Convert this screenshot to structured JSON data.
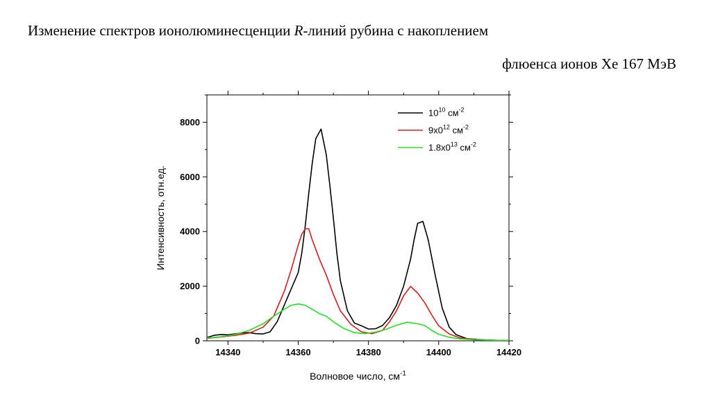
{
  "header": {
    "line1_prefix": "Изменение спектров ионолюминесценции ",
    "line1_italic": "R",
    "line1_suffix": "-линий рубина с накоплением",
    "line2": "флюенса ионов Xe 167 МэВ"
  },
  "chart_data": {
    "type": "line",
    "xlabel": {
      "text": "Волновое число, см",
      "sup": "-1"
    },
    "ylabel": "Интенсивность, отн.ед.",
    "xlim": [
      14334,
      14420
    ],
    "ylim": [
      0,
      9000
    ],
    "x_ticks": [
      14340,
      14360,
      14380,
      14400,
      14420
    ],
    "y_ticks": [
      0,
      2000,
      4000,
      6000,
      8000
    ],
    "grid": false,
    "legend_position": "top-right",
    "series": [
      {
        "name": "10^10 см^-2",
        "legend": {
          "base": "10",
          "sup1": "10",
          "mid": " см",
          "sup2": "-2"
        },
        "color": "#000000",
        "points": [
          [
            14334,
            120
          ],
          [
            14336,
            200
          ],
          [
            14338,
            230
          ],
          [
            14340,
            220
          ],
          [
            14342,
            250
          ],
          [
            14344,
            290
          ],
          [
            14346,
            300
          ],
          [
            14348,
            260
          ],
          [
            14350,
            250
          ],
          [
            14352,
            330
          ],
          [
            14354,
            700
          ],
          [
            14356,
            1300
          ],
          [
            14358,
            1900
          ],
          [
            14360,
            2500
          ],
          [
            14361,
            3200
          ],
          [
            14362,
            4200
          ],
          [
            14363,
            5400
          ],
          [
            14364,
            6500
          ],
          [
            14365,
            7400
          ],
          [
            14366.5,
            7750
          ],
          [
            14368,
            6800
          ],
          [
            14369,
            5700
          ],
          [
            14370,
            4500
          ],
          [
            14371,
            3200
          ],
          [
            14372,
            2200
          ],
          [
            14374,
            1100
          ],
          [
            14376,
            650
          ],
          [
            14378,
            550
          ],
          [
            14380,
            430
          ],
          [
            14382,
            440
          ],
          [
            14384,
            560
          ],
          [
            14386,
            850
          ],
          [
            14388,
            1300
          ],
          [
            14390,
            2000
          ],
          [
            14392,
            3000
          ],
          [
            14393,
            3700
          ],
          [
            14394,
            4300
          ],
          [
            14395.5,
            4370
          ],
          [
            14397,
            3700
          ],
          [
            14399,
            2400
          ],
          [
            14401,
            1200
          ],
          [
            14403,
            500
          ],
          [
            14405,
            220
          ],
          [
            14408,
            80
          ],
          [
            14412,
            40
          ],
          [
            14416,
            20
          ],
          [
            14420,
            10
          ]
        ]
      },
      {
        "name": "9x0^12 см^-2",
        "legend": {
          "base": "9x0",
          "sup1": "12",
          "mid": " см",
          "sup2": "-2"
        },
        "color": "#e01a1a",
        "points": [
          [
            14334,
            90
          ],
          [
            14338,
            140
          ],
          [
            14342,
            200
          ],
          [
            14346,
            280
          ],
          [
            14350,
            500
          ],
          [
            14353,
            900
          ],
          [
            14356,
            1800
          ],
          [
            14358,
            2600
          ],
          [
            14360,
            3500
          ],
          [
            14361,
            3900
          ],
          [
            14362,
            4100
          ],
          [
            14363,
            4100
          ],
          [
            14364,
            3700
          ],
          [
            14366,
            3000
          ],
          [
            14368,
            2400
          ],
          [
            14370,
            1700
          ],
          [
            14372,
            1100
          ],
          [
            14375,
            600
          ],
          [
            14378,
            330
          ],
          [
            14381,
            260
          ],
          [
            14384,
            380
          ],
          [
            14386,
            700
          ],
          [
            14388,
            1100
          ],
          [
            14390,
            1650
          ],
          [
            14392,
            1990
          ],
          [
            14394,
            1750
          ],
          [
            14396,
            1400
          ],
          [
            14398,
            950
          ],
          [
            14400,
            550
          ],
          [
            14403,
            250
          ],
          [
            14406,
            110
          ],
          [
            14410,
            50
          ],
          [
            14415,
            20
          ],
          [
            14420,
            10
          ]
        ]
      },
      {
        "name": "1.8x0^13 см^-2",
        "legend": {
          "base": "1.8x0",
          "sup1": "13",
          "mid": " см",
          "sup2": "-2"
        },
        "color": "#22e022",
        "points": [
          [
            14334,
            100
          ],
          [
            14338,
            150
          ],
          [
            14342,
            230
          ],
          [
            14346,
            380
          ],
          [
            14350,
            620
          ],
          [
            14353,
            900
          ],
          [
            14356,
            1150
          ],
          [
            14358,
            1300
          ],
          [
            14360,
            1350
          ],
          [
            14362,
            1300
          ],
          [
            14364,
            1150
          ],
          [
            14366,
            1000
          ],
          [
            14368,
            900
          ],
          [
            14370,
            700
          ],
          [
            14373,
            450
          ],
          [
            14376,
            300
          ],
          [
            14379,
            260
          ],
          [
            14382,
            320
          ],
          [
            14385,
            420
          ],
          [
            14388,
            570
          ],
          [
            14391,
            680
          ],
          [
            14394,
            620
          ],
          [
            14396,
            560
          ],
          [
            14398,
            380
          ],
          [
            14400,
            240
          ],
          [
            14403,
            130
          ],
          [
            14406,
            70
          ],
          [
            14410,
            40
          ],
          [
            14415,
            20
          ],
          [
            14420,
            10
          ]
        ]
      }
    ]
  }
}
